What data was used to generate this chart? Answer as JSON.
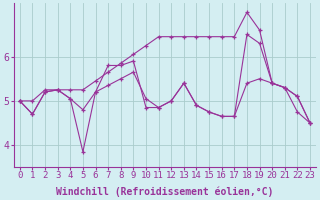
{
  "xlabel": "Windchill (Refroidissement éolien,°C)",
  "bg_color": "#d4eef2",
  "line_color": "#993399",
  "grid_color": "#aacccc",
  "xlim": [
    -0.5,
    23.5
  ],
  "ylim": [
    3.5,
    7.2
  ],
  "xticks": [
    0,
    1,
    2,
    3,
    4,
    5,
    6,
    7,
    8,
    9,
    10,
    11,
    12,
    13,
    14,
    15,
    16,
    17,
    18,
    19,
    20,
    21,
    22,
    23
  ],
  "yticks": [
    4,
    5,
    6
  ],
  "series": {
    "line1": [
      5.0,
      4.7,
      5.2,
      5.25,
      5.05,
      4.8,
      5.2,
      5.35,
      5.5,
      5.65,
      5.05,
      4.85,
      5.0,
      5.4,
      4.9,
      4.75,
      4.65,
      4.65,
      5.4,
      5.5,
      5.4,
      5.3,
      4.75,
      4.5
    ],
    "line2": [
      5.0,
      4.7,
      5.2,
      5.25,
      5.05,
      3.85,
      5.2,
      5.8,
      5.8,
      5.9,
      4.85,
      4.85,
      5.0,
      5.4,
      4.9,
      4.75,
      4.65,
      4.65,
      6.5,
      6.3,
      5.4,
      5.3,
      5.1,
      4.5
    ],
    "line3": [
      5.0,
      5.0,
      5.25,
      5.25,
      5.25,
      5.25,
      5.45,
      5.65,
      5.85,
      6.05,
      6.25,
      6.45,
      6.45,
      6.45,
      6.45,
      6.45,
      6.45,
      6.45,
      7.0,
      6.6,
      5.4,
      5.3,
      5.1,
      4.5
    ]
  },
  "fontsize_xlabel": 7,
  "fontsize_yticks": 7,
  "fontsize_xticks": 6.5
}
